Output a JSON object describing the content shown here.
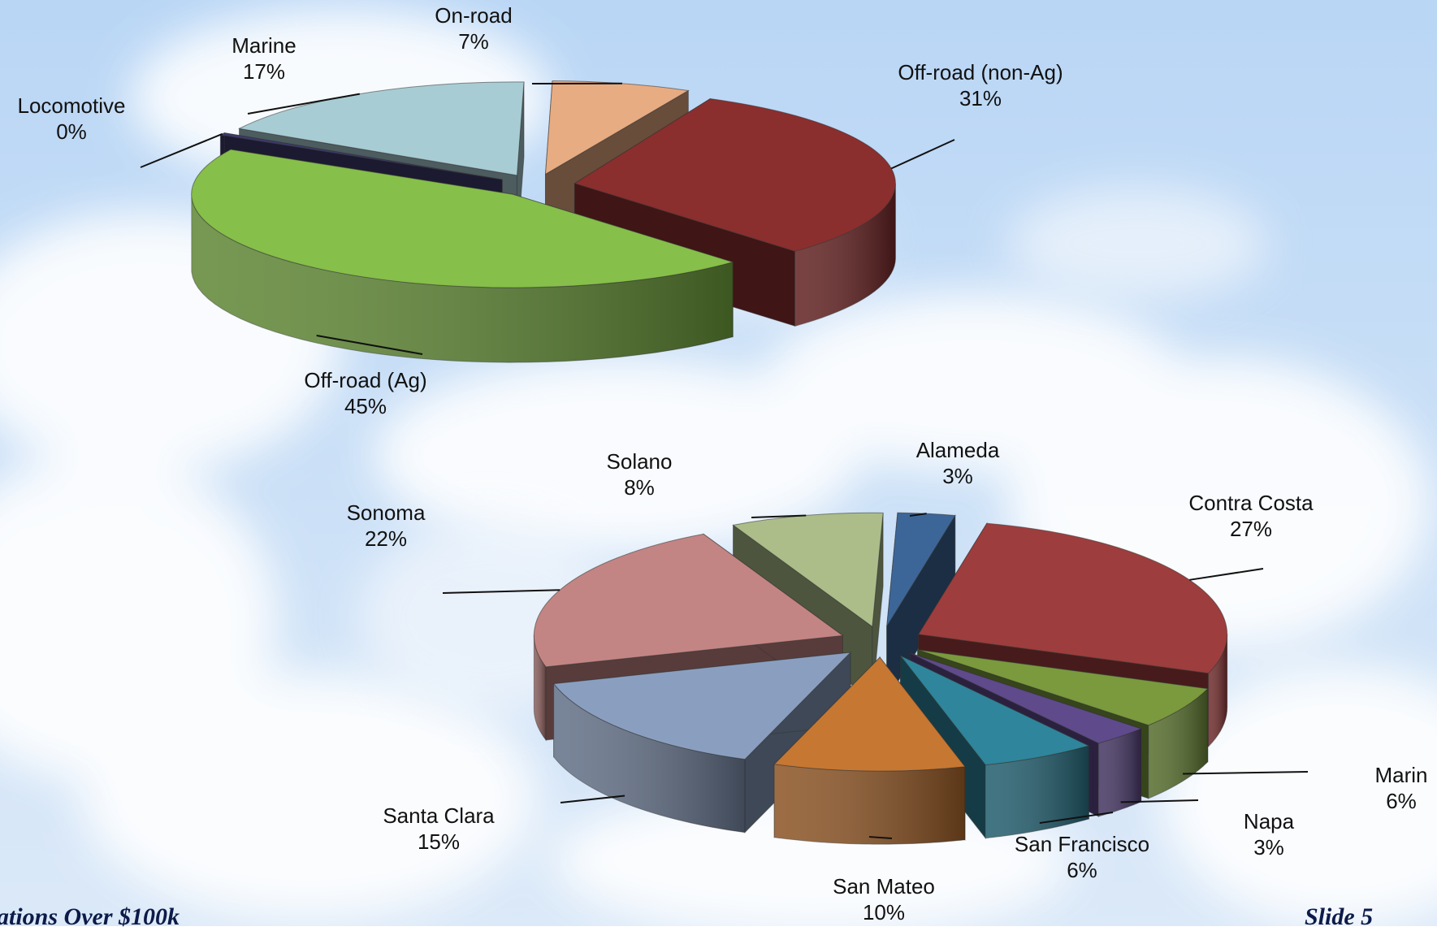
{
  "footer": {
    "left": "ations Over $100k",
    "right": "Slide 5"
  },
  "colors": {
    "sky_top": "#b9d6f5",
    "sky_bottom": "#dbe9f8"
  },
  "chart_data": [
    {
      "type": "pie",
      "style": "3d-exploded",
      "title": "",
      "categories": [
        "Off-road (non-Ag)",
        "Off-road (Ag)",
        "Locomotive",
        "Marine",
        "On-road"
      ],
      "values": [
        31,
        45,
        0,
        17,
        7
      ],
      "labels": [
        "31%",
        "45%",
        "0%",
        "17%",
        "7%"
      ],
      "colors": [
        "#8b2e2e",
        "#86bf49",
        "#3c3a6b",
        "#a8ccd4",
        "#e8ac82"
      ],
      "legend": "none"
    },
    {
      "type": "pie",
      "style": "3d-exploded",
      "title": "",
      "categories": [
        "Alameda",
        "Contra Costa",
        "Marin",
        "Napa",
        "San Francisco",
        "San Mateo",
        "Santa Clara",
        "Sonoma",
        "Solano"
      ],
      "values": [
        3,
        27,
        6,
        3,
        6,
        10,
        15,
        22,
        8
      ],
      "labels": [
        "3%",
        "27%",
        "6%",
        "3%",
        "6%",
        "10%",
        "15%",
        "22%",
        "8%"
      ],
      "colors": [
        "#3d6698",
        "#9e3d3d",
        "#7a9a3d",
        "#5f4a8b",
        "#2f859b",
        "#c67732",
        "#8a9fc0",
        "#c38583",
        "#acbd8a"
      ],
      "legend": "none"
    }
  ]
}
